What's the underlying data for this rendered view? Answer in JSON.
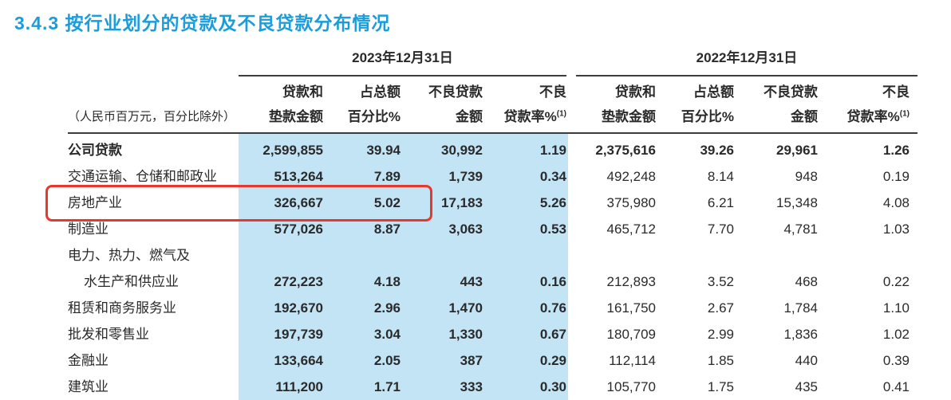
{
  "title": "3.4.3  按行业划分的贷款及不良贷款分布情况",
  "colors": {
    "accent": "#1a9ddb",
    "band": "#c2e4f5",
    "highlight": "#e8372c",
    "rule": "#3c3c3c",
    "text": "#2a2a2a"
  },
  "table": {
    "unit_note": "（人民币百万元，百分比除外）",
    "periods": [
      "2023年12月31日",
      "2022年12月31日"
    ],
    "column_headers_line1": [
      "贷款和",
      "占总额",
      "不良贷款",
      "不良"
    ],
    "column_headers_line2": [
      "垫款金额",
      "百分比%",
      "金额",
      "贷款率%"
    ],
    "footnote_marker": "(1)",
    "rows": [
      {
        "label": "公司贷款",
        "v2023": [
          "2,599,855",
          "39.94",
          "30,992",
          "1.19"
        ],
        "v2022": [
          "2,375,616",
          "39.26",
          "29,961",
          "1.26"
        ]
      },
      {
        "label": "交通运输、仓储和邮政业",
        "v2023": [
          "513,264",
          "7.89",
          "1,739",
          "0.34"
        ],
        "v2022": [
          "492,248",
          "8.14",
          "948",
          "0.19"
        ]
      },
      {
        "label": "房地产业",
        "v2023": [
          "326,667",
          "5.02",
          "17,183",
          "5.26"
        ],
        "v2022": [
          "375,980",
          "6.21",
          "15,348",
          "4.08"
        ]
      },
      {
        "label": "制造业",
        "v2023": [
          "577,026",
          "8.87",
          "3,063",
          "0.53"
        ],
        "v2022": [
          "465,712",
          "7.70",
          "4,781",
          "1.03"
        ]
      },
      {
        "label": "电力、热力、燃气及",
        "label_line2": "水生产和供应业",
        "v2023": [
          "272,223",
          "4.18",
          "443",
          "0.16"
        ],
        "v2022": [
          "212,893",
          "3.52",
          "468",
          "0.22"
        ]
      },
      {
        "label": "租赁和商务服务业",
        "v2023": [
          "192,670",
          "2.96",
          "1,470",
          "0.76"
        ],
        "v2022": [
          "161,750",
          "2.67",
          "1,784",
          "1.10"
        ]
      },
      {
        "label": "批发和零售业",
        "v2023": [
          "197,739",
          "3.04",
          "1,330",
          "0.67"
        ],
        "v2022": [
          "180,709",
          "2.99",
          "1,836",
          "1.02"
        ]
      },
      {
        "label": "金融业",
        "v2023": [
          "133,664",
          "2.05",
          "387",
          "0.29"
        ],
        "v2022": [
          "112,114",
          "1.85",
          "440",
          "0.39"
        ]
      },
      {
        "label": "建筑业",
        "v2023": [
          "111,200",
          "1.71",
          "333",
          "0.30"
        ],
        "v2022": [
          "105,770",
          "1.75",
          "435",
          "0.41"
        ]
      }
    ],
    "highlighted_row": "房地产业"
  }
}
